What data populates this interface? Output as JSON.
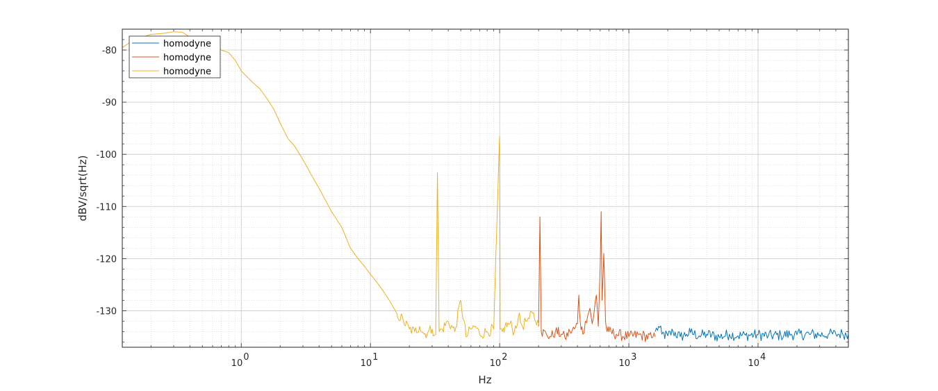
{
  "chart_data": {
    "type": "line",
    "title": "",
    "xlabel": "Hz",
    "ylabel": "dBV/sqrt(Hz)",
    "xscale": "log",
    "xlim": [
      0.12,
      50000
    ],
    "ylim": [
      -137,
      -76
    ],
    "grid": true,
    "minor_grid": true,
    "legend_position": "top-left",
    "x_ticks": [
      {
        "value": 1,
        "base": "10",
        "exp": "0"
      },
      {
        "value": 10,
        "base": "10",
        "exp": "1"
      },
      {
        "value": 100,
        "base": "10",
        "exp": "2"
      },
      {
        "value": 1000,
        "base": "10",
        "exp": "3"
      },
      {
        "value": 10000,
        "base": "10",
        "exp": "4"
      }
    ],
    "y_ticks": [
      {
        "value": -80,
        "label": "-80"
      },
      {
        "value": -90,
        "label": "-90"
      },
      {
        "value": -100,
        "label": "-100"
      },
      {
        "value": -110,
        "label": "-110"
      },
      {
        "value": -120,
        "label": "-120"
      },
      {
        "value": -130,
        "label": "-130"
      }
    ],
    "series": [
      {
        "name": "homodyne",
        "color": "#0072BD",
        "x": [
          1600,
          1700,
          1800,
          2000,
          2200,
          2500,
          2800,
          3000,
          3500,
          4000,
          5000,
          6000,
          7000,
          8000,
          10000,
          12000,
          15000,
          18000,
          20000,
          25000,
          30000,
          35000,
          40000,
          45000,
          50000
        ],
        "y": [
          -134.0,
          -133.0,
          -134.5,
          -134.8,
          -134.0,
          -135.0,
          -134.5,
          -134.2,
          -134.8,
          -134.5,
          -135.0,
          -134.5,
          -134.8,
          -134.7,
          -134.6,
          -134.8,
          -134.7,
          -134.5,
          -134.6,
          -134.5,
          -134.6,
          -134.5,
          -134.5,
          -134.4,
          -134.5
        ]
      },
      {
        "name": "homodyne",
        "color": "#D95319",
        "x": [
          200,
          205,
          210,
          230,
          250,
          270,
          300,
          320,
          350,
          380,
          400,
          410,
          420,
          440,
          460,
          480,
          500,
          520,
          540,
          560,
          580,
          600,
          610,
          620,
          640,
          660,
          680,
          700,
          800,
          1000,
          1200,
          1500,
          1600
        ],
        "y": [
          -133.0,
          -112.0,
          -134.0,
          -134.5,
          -135.0,
          -134.0,
          -134.5,
          -135.2,
          -134.0,
          -133.5,
          -132.5,
          -127.0,
          -132.0,
          -134.5,
          -132.0,
          -131.0,
          -129.5,
          -132.5,
          -130.0,
          -127.0,
          -133.0,
          -121.5,
          -111.0,
          -128.0,
          -119.0,
          -132.0,
          -134.0,
          -134.0,
          -134.5,
          -135.0,
          -134.6,
          -135.2,
          -135.0
        ]
      },
      {
        "name": "homodyne",
        "color": "#EDB120",
        "x": [
          0.12,
          0.15,
          0.2,
          0.25,
          0.3,
          0.35,
          0.4,
          0.5,
          0.6,
          0.7,
          0.8,
          0.9,
          1.0,
          1.2,
          1.4,
          1.6,
          1.8,
          2.0,
          2.3,
          2.6,
          3.0,
          3.5,
          4.0,
          5.0,
          6.0,
          7.0,
          8.0,
          9.0,
          10,
          12,
          14,
          16,
          18,
          20,
          22,
          24,
          26,
          28,
          30,
          32,
          33,
          34,
          36,
          40,
          45,
          50,
          55,
          60,
          65,
          70,
          80,
          90,
          100,
          101,
          105,
          110,
          120,
          130,
          140,
          150,
          160,
          170,
          180,
          190,
          200
        ],
        "y": [
          -79.5,
          -78.0,
          -77.0,
          -76.8,
          -76.5,
          -76.6,
          -77.5,
          -78.5,
          -79.0,
          -80.0,
          -80.5,
          -82.0,
          -84.0,
          -86.0,
          -87.5,
          -89.5,
          -91.5,
          -94.0,
          -97.0,
          -98.5,
          -101.0,
          -104.0,
          -106.5,
          -111.0,
          -114.0,
          -118.0,
          -120.0,
          -121.5,
          -123.0,
          -125.5,
          -128.0,
          -130.5,
          -132.0,
          -133.5,
          -134.0,
          -133.0,
          -134.5,
          -134.0,
          -133.5,
          -134.5,
          -103.5,
          -134.0,
          -133.5,
          -132.0,
          -134.0,
          -128.0,
          -135.0,
          -133.5,
          -133.0,
          -134.5,
          -134.0,
          -133.5,
          -96.5,
          -133.5,
          -134.0,
          -133.0,
          -132.5,
          -134.0,
          -131.0,
          -133.0,
          -132.0,
          -131.5,
          -130.5,
          -132.0,
          -132.5
        ]
      }
    ]
  }
}
